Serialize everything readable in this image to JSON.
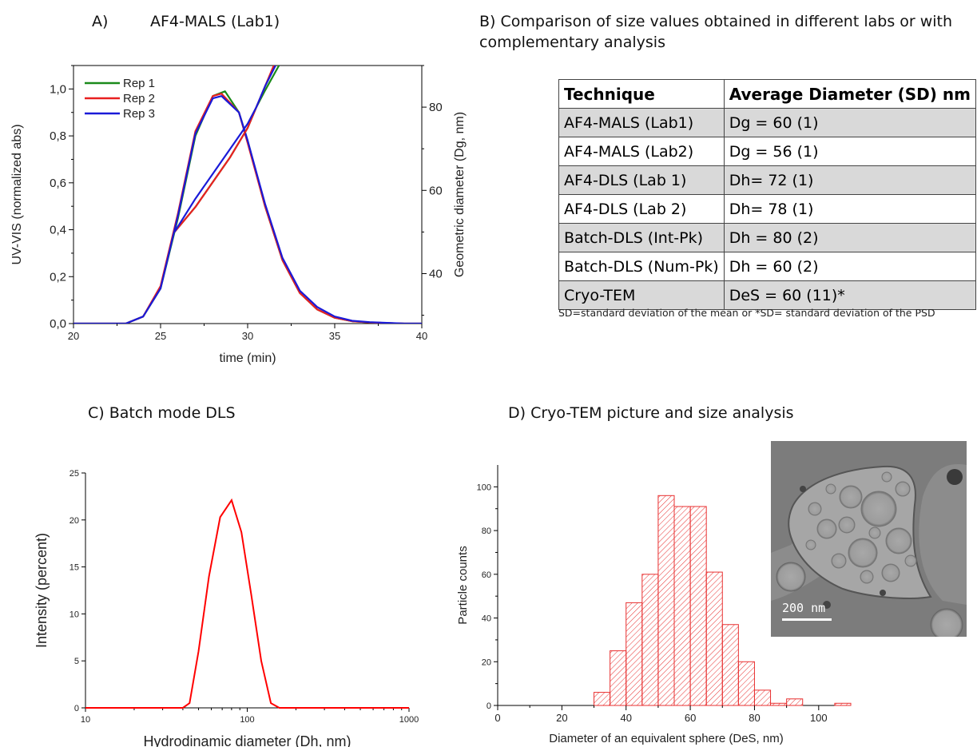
{
  "panels": {
    "a": {
      "letter": "A)",
      "title": "AF4-MALS (Lab1)"
    },
    "b": {
      "title_line1": "B) Comparison of size values obtained in different labs or with",
      "title_line2": "complementary analysis"
    },
    "c": {
      "title": "C) Batch mode DLS"
    },
    "d": {
      "title": "D) Cryo-TEM picture and size analysis"
    }
  },
  "table": {
    "headers": [
      "Technique",
      "Average Diameter (SD) nm"
    ],
    "rows": [
      [
        "AF4-MALS (Lab1)",
        "Dg = 60 (1)"
      ],
      [
        "AF4-MALS (Lab2)",
        "Dg = 56 (1)"
      ],
      [
        "AF4-DLS (Lab 1)",
        "Dh= 72 (1)"
      ],
      [
        "AF4-DLS (Lab 2)",
        "Dh= 78 (1)"
      ],
      [
        "Batch-DLS (Int-Pk)",
        "Dh = 80 (2)"
      ],
      [
        "Batch-DLS (Num-Pk)",
        "Dh = 60 (2)"
      ],
      [
        "Cryo-TEM",
        "DeS = 60 (11)*"
      ]
    ],
    "note": "SD=standard deviation of the mean or *SD= standard deviation of the PSD"
  },
  "tem_image": {
    "scale_bar_label": "200 nm"
  },
  "chart_data": [
    {
      "type": "line",
      "xlabel": "time (min)",
      "ylabel": "UV-VIS (normalized abs)",
      "y2label": "Geometric diameter (Dg, nm)",
      "xlim": [
        20,
        40
      ],
      "ylim": [
        0,
        1.1
      ],
      "y2lim": [
        28,
        90
      ],
      "xticks": [
        20,
        25,
        30,
        35,
        40
      ],
      "yticks": [
        "0,0",
        "0,2",
        "0,4",
        "0,6",
        "0,8",
        "1,0"
      ],
      "y2ticks": [
        40,
        60,
        80
      ],
      "legend_position": "top-left",
      "series": [
        {
          "name": "Rep 1",
          "color": "#1a8a1a",
          "axis": "left",
          "x": [
            20,
            23,
            24,
            25,
            26,
            27,
            28,
            28.7,
            29.5,
            30,
            31,
            32,
            33,
            34,
            35,
            36,
            37,
            38,
            39,
            40
          ],
          "y": [
            0,
            0,
            0.03,
            0.15,
            0.45,
            0.8,
            0.97,
            0.99,
            0.9,
            0.78,
            0.5,
            0.27,
            0.13,
            0.06,
            0.025,
            0.01,
            0.005,
            0.002,
            0,
            0
          ]
        },
        {
          "name": "Rep 2",
          "color": "#e82020",
          "axis": "left",
          "x": [
            20,
            23,
            24,
            25,
            26,
            27,
            28,
            28.5,
            29.5,
            30,
            31,
            32,
            33,
            34,
            35,
            36,
            37,
            38,
            39,
            40
          ],
          "y": [
            0,
            0,
            0.03,
            0.16,
            0.47,
            0.82,
            0.97,
            0.98,
            0.9,
            0.77,
            0.5,
            0.27,
            0.13,
            0.06,
            0.025,
            0.01,
            0.005,
            0.002,
            0,
            0
          ]
        },
        {
          "name": "Rep 3",
          "color": "#1a1ad8",
          "axis": "left",
          "x": [
            20,
            23,
            24,
            25,
            26,
            27,
            28,
            28.5,
            29.5,
            30,
            31,
            32,
            33,
            34,
            35,
            36,
            37,
            38,
            39,
            40
          ],
          "y": [
            0,
            0,
            0.03,
            0.15,
            0.46,
            0.81,
            0.96,
            0.97,
            0.9,
            0.78,
            0.51,
            0.28,
            0.14,
            0.07,
            0.03,
            0.012,
            0.006,
            0.003,
            0,
            0
          ]
        },
        {
          "name": "",
          "color": "#1a8a1a",
          "axis": "right",
          "x": [
            25.8,
            27,
            28,
            29,
            30,
            30.5,
            31,
            31.8
          ],
          "y": [
            50,
            56,
            62,
            68,
            75,
            80,
            84,
            90
          ]
        },
        {
          "name": "",
          "color": "#e82020",
          "axis": "right",
          "x": [
            25.8,
            27,
            28,
            29,
            30,
            30.5,
            31,
            31.5
          ],
          "y": [
            50,
            56,
            62,
            68,
            75,
            80,
            85,
            90
          ]
        },
        {
          "name": "",
          "color": "#1a1ad8",
          "axis": "right",
          "x": [
            25.8,
            27,
            28,
            29,
            30,
            30.5,
            31,
            31.6
          ],
          "y": [
            50,
            58,
            64,
            70,
            76,
            80,
            85,
            90
          ]
        }
      ]
    },
    {
      "type": "line",
      "xlabel": "Hydrodinamic diameter (Dh, nm)",
      "ylabel": "Intensity (percent)",
      "xscale": "log",
      "xlim": [
        10,
        1000
      ],
      "ylim": [
        0,
        25
      ],
      "xticks": [
        10,
        100,
        1000
      ],
      "yticks": [
        0,
        5,
        10,
        15,
        20,
        25
      ],
      "series": [
        {
          "name": "",
          "color": "#ff0000",
          "x": [
            10,
            40,
            44,
            50,
            58,
            68,
            80,
            92,
            106,
            122,
            140,
            158,
            1000
          ],
          "y": [
            0,
            0,
            0.5,
            6,
            14,
            20.3,
            22.1,
            18.7,
            12,
            5,
            0.5,
            0,
            0
          ]
        }
      ]
    },
    {
      "type": "bar",
      "xlabel": "Diameter of an equivalent sphere (DeS, nm)",
      "ylabel": "Particle counts",
      "xlim": [
        0,
        110
      ],
      "ylim": [
        0,
        110
      ],
      "xticks": [
        0,
        20,
        40,
        60,
        80,
        100
      ],
      "yticks": [
        0,
        20,
        40,
        60,
        80,
        100
      ],
      "bin_width": 5,
      "bin_starts": [
        30,
        35,
        40,
        45,
        50,
        55,
        60,
        65,
        70,
        75,
        80,
        85,
        90,
        95,
        100,
        105
      ],
      "values": [
        6,
        25,
        47,
        60,
        96,
        91,
        91,
        61,
        37,
        20,
        7,
        1,
        3,
        0,
        0,
        1
      ],
      "color": "#e83030"
    }
  ]
}
